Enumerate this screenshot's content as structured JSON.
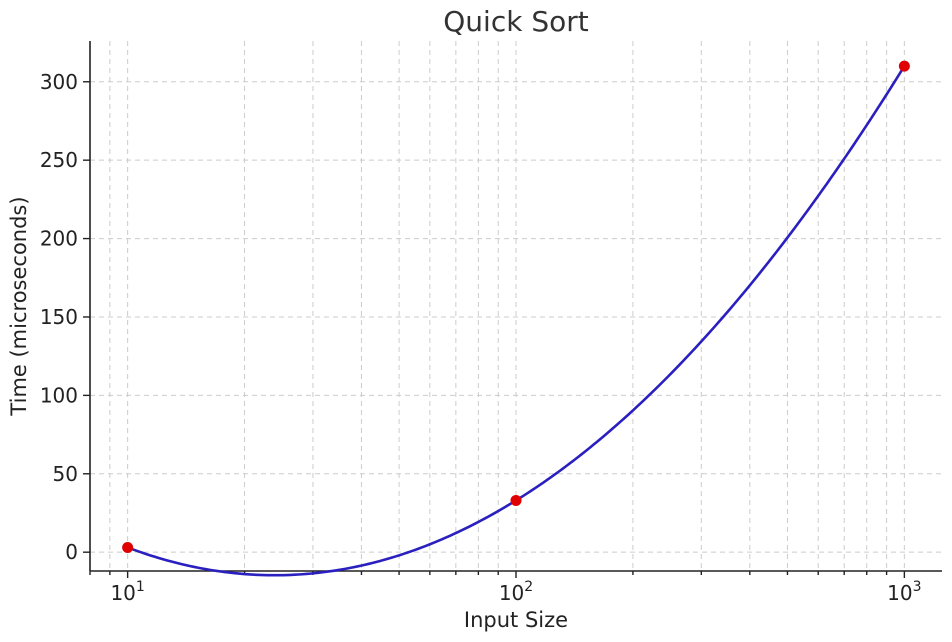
{
  "chart_data": {
    "type": "line",
    "title": "Quick Sort",
    "xlabel": "Input Size",
    "ylabel": "Time (microseconds)",
    "x_scale": "log",
    "xlim": [
      8,
      1250
    ],
    "ylim": [
      -12,
      326
    ],
    "grid": true,
    "x_ticks": [
      {
        "value": 10,
        "base": "10",
        "exp": "1"
      },
      {
        "value": 100,
        "base": "10",
        "exp": "2"
      },
      {
        "value": 1000,
        "base": "10",
        "exp": "3"
      }
    ],
    "y_ticks": [
      0,
      50,
      100,
      150,
      200,
      250,
      300
    ],
    "series": [
      {
        "line_color": "#2a1fbf",
        "marker_color": "#e00000",
        "points": [
          {
            "x": 10,
            "y": 3
          },
          {
            "x": 100,
            "y": 33
          },
          {
            "x": 1000,
            "y": 310
          }
        ]
      }
    ]
  }
}
